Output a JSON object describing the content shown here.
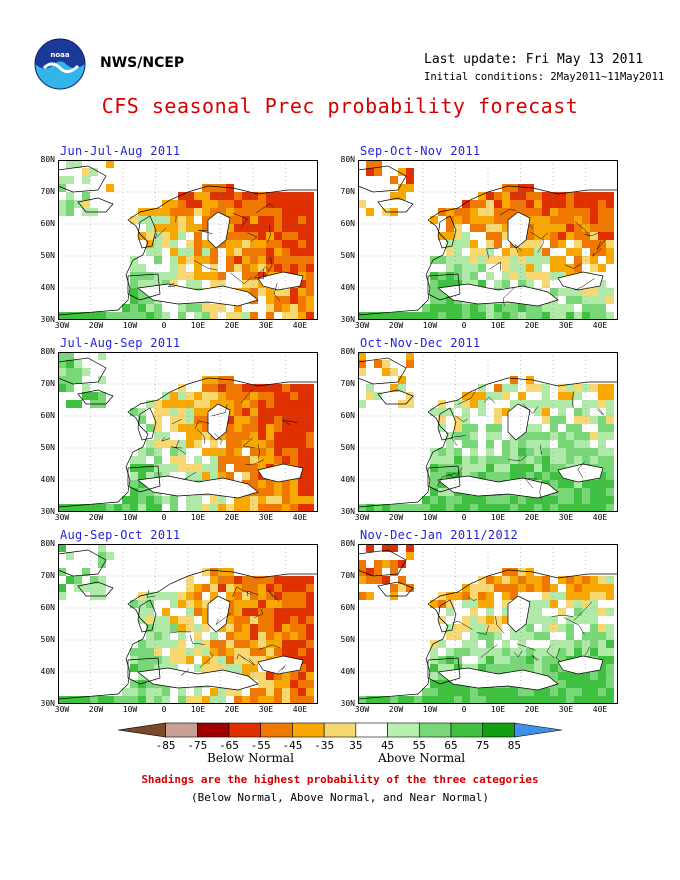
{
  "header": {
    "org": "NWS/NCEP",
    "last_update": "Last update: Fri May 13 2011",
    "initial_conditions": "Initial conditions: 2May2011~11May2011",
    "title": "CFS seasonal Prec probability forecast"
  },
  "lat_labels": [
    "80N",
    "70N",
    "60N",
    "50N",
    "40N",
    "30N"
  ],
  "lon_labels": [
    "30W",
    "20W",
    "10W",
    "0",
    "10E",
    "20E",
    "30E",
    "40E"
  ],
  "panels": [
    {
      "title": "Jun-Jul-Aug 2011",
      "pattern": 0
    },
    {
      "title": "Sep-Oct-Nov 2011",
      "pattern": 1
    },
    {
      "title": "Jul-Aug-Sep 2011",
      "pattern": 2
    },
    {
      "title": "Oct-Nov-Dec 2011",
      "pattern": 3
    },
    {
      "title": "Aug-Sep-Oct 2011",
      "pattern": 4
    },
    {
      "title": "Nov-Dec-Jan 2011/2012",
      "pattern": 5
    }
  ],
  "colorbar": {
    "labels": [
      "-85",
      "-75",
      "-65",
      "-55",
      "-45",
      "-35",
      "35",
      "45",
      "55",
      "65",
      "75",
      "85"
    ],
    "colors": [
      "#7a4a2a",
      "#c8a096",
      "#a00000",
      "#e03000",
      "#f07800",
      "#f8a800",
      "#f8d870",
      "#ffffff",
      "#b8f0b0",
      "#78d878",
      "#40c040",
      "#10a010",
      "#4090e8"
    ],
    "below_label": "Below Normal",
    "above_label": "Above Normal"
  },
  "colors": {
    "land_green": "#b0eaa8",
    "yellow": "#f8d870",
    "orange": "#f8a800",
    "dark_orange": "#f07800",
    "red": "#e03000",
    "green": "#78d878",
    "dark_green": "#40c040",
    "title_red": "#d40000",
    "panel_title_blue": "#2424d8"
  },
  "notes": {
    "line1": "Shadings are the highest probability of the three categories",
    "line2": "(Below Normal, Above Normal, and Near Normal)"
  }
}
